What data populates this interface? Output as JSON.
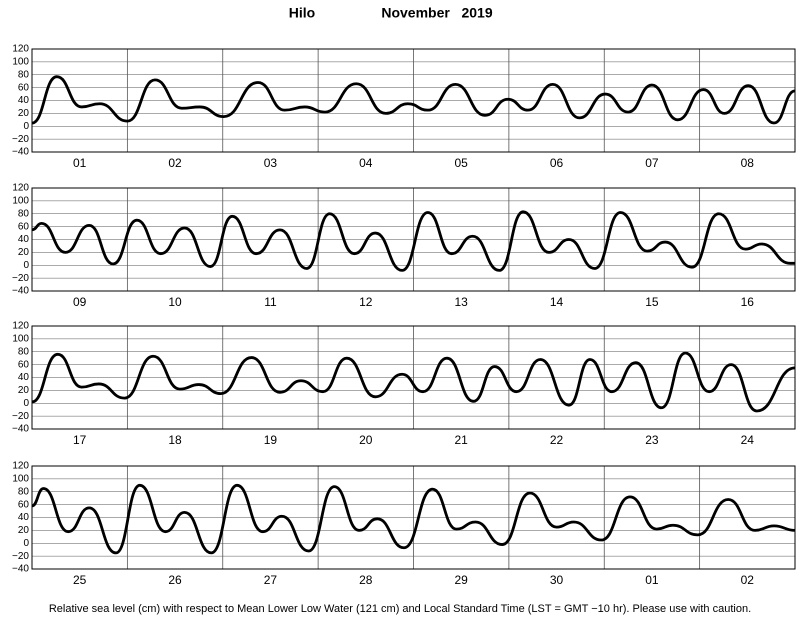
{
  "title": "Hilo",
  "subtitle": "November   2019",
  "note": "Relative sea level (cm) with respect to Mean Lower Low Water (121 cm) and Local Standard Time (LST = GMT −10 hr). Please use with caution.",
  "chart_data": [
    {
      "type": "line",
      "color": "#000000",
      "grid": true,
      "xlim": [
        0,
        8
      ],
      "ylim": [
        -40,
        120
      ],
      "yticks": [
        {
          "value": -40,
          "label": "−40"
        },
        {
          "value": -20,
          "label": "−20"
        },
        0,
        20,
        40,
        60,
        80,
        100,
        120
      ],
      "categories": [
        "01",
        "02",
        "03",
        "04",
        "05",
        "06",
        "07",
        "08"
      ],
      "x": [
        0,
        0.26,
        0.52,
        0.71,
        1.0,
        1.29,
        1.57,
        1.76,
        2.01,
        2.37,
        2.65,
        2.86,
        3.07,
        3.4,
        3.71,
        3.94,
        4.15,
        4.44,
        4.75,
        4.99,
        5.2,
        5.46,
        5.74,
        6.01,
        6.25,
        6.5,
        6.77,
        7.04,
        7.26,
        7.51,
        7.78,
        8.0
      ],
      "values": [
        5,
        77,
        30,
        35,
        8,
        72,
        28,
        30,
        15,
        68,
        25,
        30,
        22,
        66,
        20,
        35,
        25,
        65,
        17,
        42,
        25,
        65,
        13,
        50,
        22,
        64,
        10,
        57,
        20,
        63,
        5,
        55
      ]
    },
    {
      "type": "line",
      "color": "#000000",
      "grid": true,
      "xlim": [
        0,
        8
      ],
      "ylim": [
        -40,
        120
      ],
      "yticks": [
        {
          "value": -40,
          "label": "−40"
        },
        {
          "value": -20,
          "label": "−20"
        },
        0,
        20,
        40,
        60,
        80,
        100,
        120
      ],
      "categories": [
        "09",
        "10",
        "11",
        "12",
        "13",
        "14",
        "15",
        "16"
      ],
      "x": [
        0,
        0.1,
        0.35,
        0.6,
        0.85,
        1.1,
        1.35,
        1.6,
        1.87,
        2.1,
        2.35,
        2.6,
        2.88,
        3.12,
        3.38,
        3.6,
        3.88,
        4.15,
        4.4,
        4.62,
        4.9,
        5.15,
        5.42,
        5.63,
        5.9,
        6.17,
        6.45,
        6.64,
        6.92,
        7.2,
        7.48,
        7.65,
        7.95,
        8.0
      ],
      "values": [
        55,
        65,
        20,
        62,
        2,
        70,
        18,
        58,
        -2,
        76,
        18,
        55,
        -5,
        80,
        18,
        50,
        -8,
        82,
        18,
        45,
        -8,
        83,
        20,
        40,
        -5,
        82,
        22,
        36,
        -3,
        80,
        25,
        33,
        3,
        3
      ]
    },
    {
      "type": "line",
      "color": "#000000",
      "grid": true,
      "xlim": [
        0,
        8
      ],
      "ylim": [
        -40,
        120
      ],
      "yticks": [
        {
          "value": -40,
          "label": "−40"
        },
        {
          "value": -20,
          "label": "−20"
        },
        0,
        20,
        40,
        60,
        80,
        100,
        120
      ],
      "categories": [
        "17",
        "18",
        "19",
        "20",
        "21",
        "22",
        "23",
        "24"
      ],
      "x": [
        0,
        0.27,
        0.52,
        0.7,
        0.97,
        1.27,
        1.55,
        1.75,
        1.98,
        2.3,
        2.6,
        2.82,
        3.05,
        3.3,
        3.6,
        3.88,
        4.1,
        4.35,
        4.63,
        4.85,
        5.08,
        5.33,
        5.63,
        5.85,
        6.08,
        6.33,
        6.6,
        6.85,
        7.1,
        7.33,
        7.6,
        8.0
      ],
      "values": [
        2,
        76,
        25,
        30,
        8,
        73,
        22,
        29,
        15,
        71,
        17,
        35,
        18,
        70,
        10,
        45,
        18,
        70,
        3,
        57,
        18,
        68,
        -3,
        68,
        18,
        63,
        -7,
        78,
        18,
        60,
        -12,
        55
      ]
    },
    {
      "type": "line",
      "color": "#000000",
      "grid": true,
      "xlim": [
        0,
        8
      ],
      "ylim": [
        -40,
        120
      ],
      "yticks": [
        {
          "value": -40,
          "label": "−40"
        },
        {
          "value": -20,
          "label": "−20"
        },
        0,
        20,
        40,
        60,
        80,
        100,
        120
      ],
      "categories": [
        "25",
        "26",
        "27",
        "28",
        "29",
        "30",
        "01",
        "02"
      ],
      "x": [
        0,
        0.12,
        0.38,
        0.6,
        0.88,
        1.13,
        1.4,
        1.6,
        1.88,
        2.15,
        2.42,
        2.62,
        2.9,
        3.17,
        3.43,
        3.62,
        3.9,
        4.2,
        4.45,
        4.65,
        4.93,
        5.22,
        5.5,
        5.68,
        5.97,
        6.27,
        6.55,
        6.72,
        6.98,
        7.3,
        7.58,
        7.78,
        8.0
      ],
      "values": [
        58,
        85,
        18,
        55,
        -15,
        90,
        18,
        48,
        -15,
        90,
        18,
        42,
        -12,
        88,
        20,
        38,
        -7,
        84,
        22,
        33,
        -2,
        78,
        25,
        33,
        5,
        72,
        22,
        28,
        13,
        68,
        20,
        27,
        20
      ]
    }
  ]
}
